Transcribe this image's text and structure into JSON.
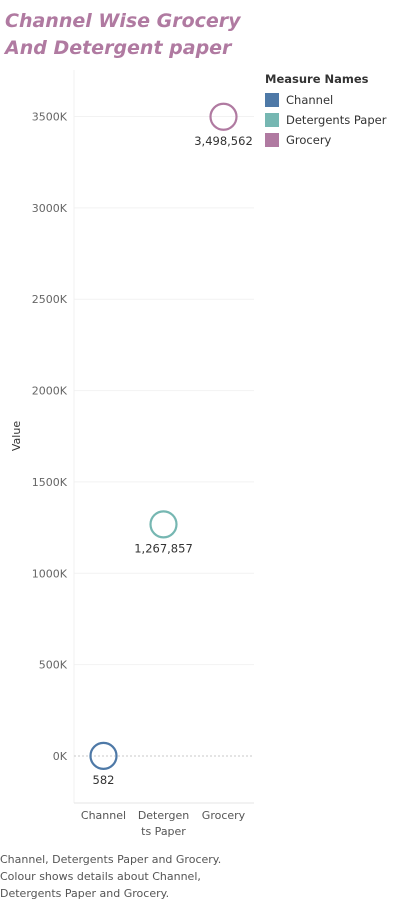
{
  "title": [
    "Channel Wise Grocery",
    "And Detergent paper"
  ],
  "legend": {
    "title": "Measure Names",
    "items": [
      {
        "label": "Channel",
        "color": "#4e79a7"
      },
      {
        "label": "Detergents Paper",
        "color": "#76b7b2"
      },
      {
        "label": "Grocery",
        "color": "#b07aa1"
      }
    ]
  },
  "caption": [
    "Channel, Detergents Paper and Grocery.",
    "Colour shows details about Channel,",
    "Detergents Paper and Grocery."
  ],
  "chart_data": {
    "type": "scatter",
    "ylabel": "Value",
    "categories": [
      [
        "Channel"
      ],
      [
        "Detergen",
        "ts Paper"
      ],
      [
        "Grocery"
      ]
    ],
    "values": [
      582,
      1267857,
      3498562
    ],
    "value_labels": [
      "582",
      "1,267,857",
      "3,498,562"
    ],
    "colors": [
      "#4e79a7",
      "#76b7b2",
      "#b07aa1"
    ],
    "ylim": [
      -250000,
      3750000
    ],
    "yticks": [
      0,
      500000,
      1000000,
      1500000,
      2000000,
      2500000,
      3000000,
      3500000
    ],
    "ytick_labels": [
      "0K",
      "500K",
      "1000K",
      "1500K",
      "2000K",
      "2500K",
      "3000K",
      "3500K"
    ],
    "grid": true,
    "legend_position": "top-right"
  }
}
